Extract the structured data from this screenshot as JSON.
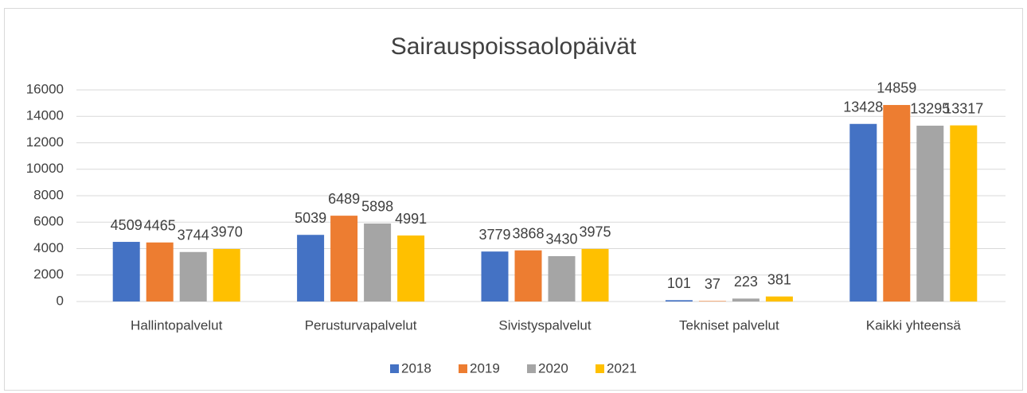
{
  "chart_data": {
    "type": "bar",
    "title": "Sairauspoissaolopäivät",
    "categories": [
      "Hallintopalvelut",
      "Perusturvapalvelut",
      "Sivistyspalvelut",
      "Tekniset palvelut",
      "Kaikki yhteensä"
    ],
    "series": [
      {
        "name": "2018",
        "color": "#4472c4",
        "values": [
          4509,
          5039,
          3779,
          101,
          13428
        ]
      },
      {
        "name": "2019",
        "color": "#ed7d31",
        "values": [
          4465,
          6489,
          3868,
          37,
          14859
        ]
      },
      {
        "name": "2020",
        "color": "#a5a5a5",
        "values": [
          3744,
          5898,
          3430,
          223,
          13295
        ]
      },
      {
        "name": "2021",
        "color": "#ffc000",
        "values": [
          3970,
          4991,
          3975,
          381,
          13317
        ]
      }
    ],
    "ylim": [
      0,
      16000
    ],
    "yticks": [
      0,
      2000,
      4000,
      6000,
      8000,
      10000,
      12000,
      14000,
      16000
    ],
    "grid": true,
    "legend": "bottom"
  }
}
